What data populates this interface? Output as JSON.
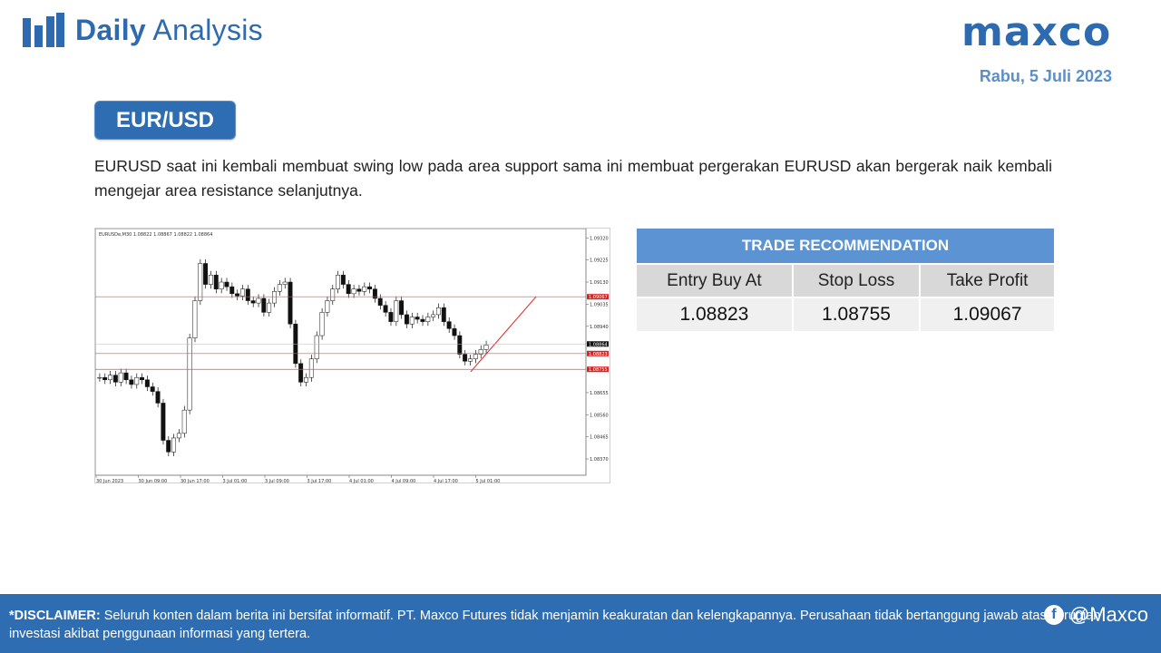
{
  "header": {
    "title_bold": "Daily",
    "title_light": "Analysis",
    "logo_icon": "bar-chart-icon"
  },
  "brand": {
    "name": "maxco"
  },
  "date": "Rabu, 5 Juli 2023",
  "pair": "EUR/USD",
  "description": "EURUSD saat ini kembali membuat swing low pada area support sama ini membuat pergerakan EURUSD akan bergerak naik kembali mengejar area resistance selanjutnya.",
  "chart": {
    "symbol_line": "EURUSDe,M30  1.08822 1.08867 1.08822 1.08864",
    "price_ticks": [
      "1.09320",
      "1.09225",
      "1.09130",
      "1.09035",
      "1.08940",
      "1.08655",
      "1.08560",
      "1.08465",
      "1.08370"
    ],
    "time_ticks": [
      "30 Jun 2023",
      "30 Jun 09:00",
      "30 Jun 17:00",
      "3 Jul 01:00",
      "3 Jul 09:00",
      "3 Jul 17:00",
      "4 Jul 01:00",
      "4 Jul 09:00",
      "4 Jul 17:00",
      "5 Jul 01:00"
    ],
    "levels": {
      "resistance": "1.09067",
      "current": "1.08864",
      "entry": "1.08823",
      "stop": "1.08755"
    },
    "colors": {
      "level_line": "#e05050",
      "level_tag": "#e02020",
      "trend": "#dd2222",
      "candles": "#111111"
    }
  },
  "trade": {
    "title": "TRADE RECOMMENDATION",
    "labels": [
      "Entry Buy At",
      "Stop Loss",
      "Take Profit"
    ],
    "values": [
      "1.08823",
      "1.08755",
      "1.09067"
    ]
  },
  "footer": {
    "disclaimer_label": "*DISCLAIMER:",
    "disclaimer_text": " Seluruh konten dalam berita ini bersifat informatif. PT. Maxco Futures tidak menjamin keakuratan dan kelengkapannya. Perusahaan tidak bertanggung jawab atas kerugian investasi akibat penggunaan informasi yang tertera.",
    "social_handle": "@Maxco",
    "social_icon": "facebook-icon"
  },
  "colors": {
    "brand_blue": "#2e6ab0",
    "accent_blue": "#5b93d3",
    "footer_blue": "#2f6db3"
  }
}
